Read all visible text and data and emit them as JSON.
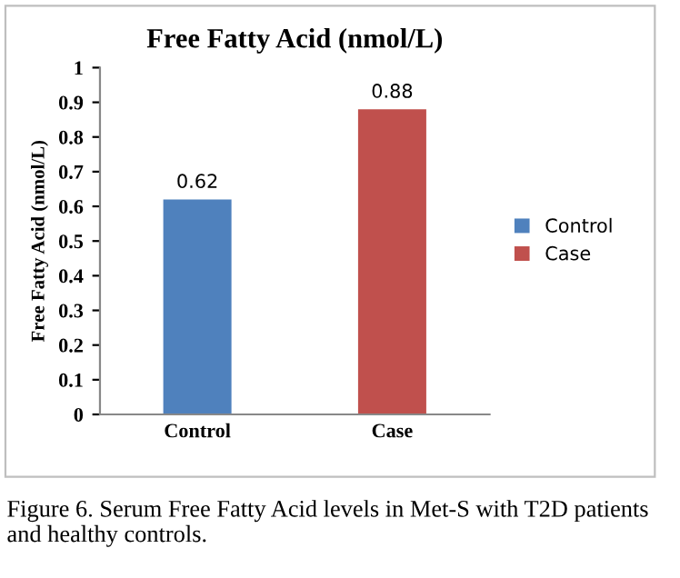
{
  "chart_data": {
    "type": "bar",
    "title": "Free Fatty Acid (nmol/L)",
    "ylabel": "Free Fatty Acid (nmol/L)",
    "categories": [
      "Control",
      "Case"
    ],
    "series": [
      {
        "name": "Control",
        "color": "#4f81bd",
        "values": [
          0.62,
          null
        ]
      },
      {
        "name": "Case",
        "color": "#c0504d",
        "values": [
          null,
          0.88
        ]
      }
    ],
    "ylim": [
      0,
      1
    ],
    "yticks": [
      0,
      0.1,
      0.2,
      0.3,
      0.4,
      0.5,
      0.6,
      0.7,
      0.8,
      0.9,
      1
    ],
    "data_labels": true,
    "legend": "right",
    "grid": false,
    "annotations": [
      "Figure 6. Serum Free Fatty Acid levels in Met-S with T2D patients and healthy controls."
    ]
  }
}
